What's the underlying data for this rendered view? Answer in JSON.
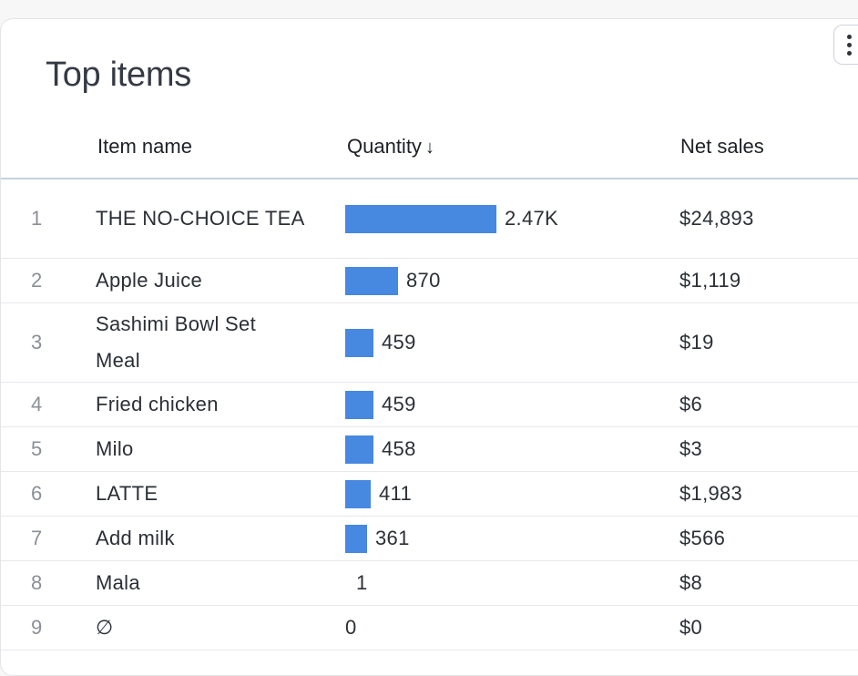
{
  "card": {
    "title": "Top items",
    "menu_icon": "more-vertical-icon"
  },
  "table": {
    "columns": {
      "item": "Item name",
      "quantity": "Quantity",
      "sort_indicator": "↓",
      "net_sales": "Net sales"
    },
    "bar_color": "#4788e0",
    "max_quantity": 2470,
    "rows": [
      {
        "rank": "1",
        "name": "THE NO-CHOICE TEA",
        "quantity": 2470,
        "quantity_label": "2.47K",
        "net_sales": "$24,893"
      },
      {
        "rank": "2",
        "name": "Apple Juice",
        "quantity": 870,
        "quantity_label": "870",
        "net_sales": "$1,119"
      },
      {
        "rank": "3",
        "name": "Sashimi Bowl Set Meal",
        "quantity": 459,
        "quantity_label": "459",
        "net_sales": "$19"
      },
      {
        "rank": "4",
        "name": "Fried chicken",
        "quantity": 459,
        "quantity_label": "459",
        "net_sales": "$6"
      },
      {
        "rank": "5",
        "name": "Milo",
        "quantity": 458,
        "quantity_label": "458",
        "net_sales": "$3"
      },
      {
        "rank": "6",
        "name": "LATTE",
        "quantity": 411,
        "quantity_label": "411",
        "net_sales": "$1,983"
      },
      {
        "rank": "7",
        "name": "Add milk",
        "quantity": 361,
        "quantity_label": "361",
        "net_sales": "$566"
      },
      {
        "rank": "8",
        "name": "Mala",
        "quantity": 1,
        "quantity_label": "1",
        "net_sales": "$8"
      },
      {
        "rank": "9",
        "name": "∅",
        "quantity": 0,
        "quantity_label": "0",
        "net_sales": "$0"
      }
    ]
  }
}
